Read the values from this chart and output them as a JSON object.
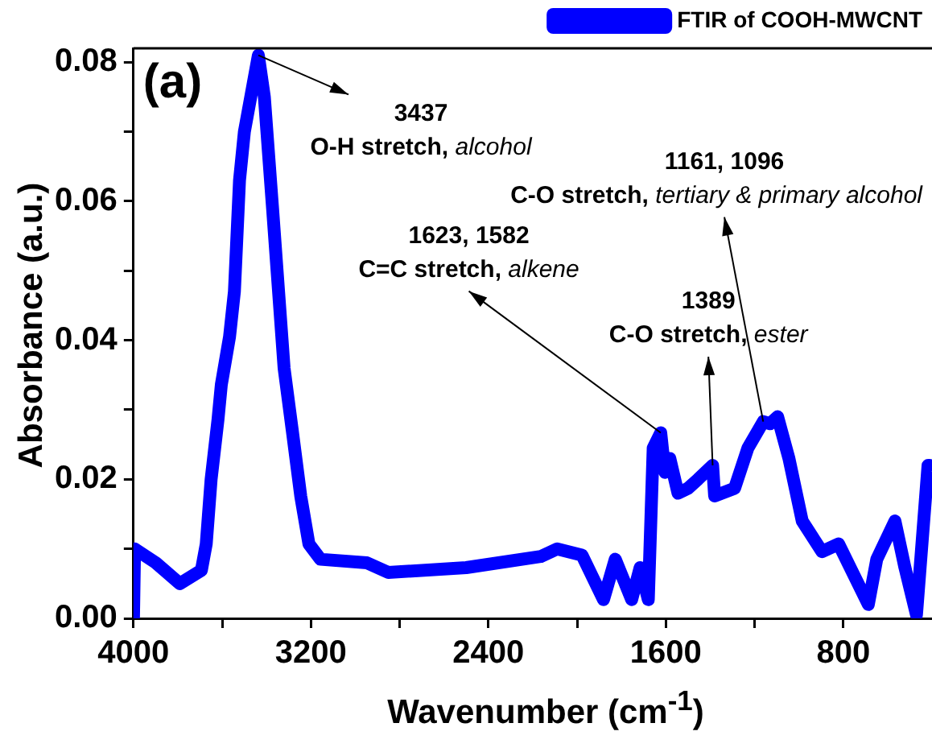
{
  "chart_data": {
    "type": "line",
    "xlabel": "Wavenumber (cm$^{-1}$)",
    "ylabel": "Absorbance (a.u.)",
    "annotations": [
      {
        "text": "3437\nO-H stretch, alcohol",
        "x": 3437,
        "y": 0.081
      },
      {
        "text": "1623, 1582\nC=C stretch, alkene",
        "x": 1623,
        "y": 0.0267
      },
      {
        "text": "1389\nC-O stretch, ester",
        "x": 1389,
        "y": 0.022
      },
      {
        "text": "1161, 1096\nC-O stretch, tertiary & primary alcohol",
        "x": 1161,
        "y": 0.0283
      },
      "(a)"
    ],
    "xlim": [
      4000,
      400
    ],
    "ylim": [
      0,
      0.082
    ],
    "xticks": [
      4000,
      {
        "value": 3600,
        "label": null
      },
      3200,
      {
        "value": 2800,
        "label": null
      },
      2400,
      {
        "value": 2000,
        "label": null
      },
      1600,
      {
        "value": 1200,
        "label": null
      },
      800
    ],
    "yticks": [
      {
        "value": 0,
        "label": "0.00"
      },
      {
        "value": 0.01,
        "label": null
      },
      {
        "value": 0.02,
        "label": "0.02"
      },
      {
        "value": 0.03,
        "label": null
      },
      {
        "value": 0.04,
        "label": "0.04"
      },
      {
        "value": 0.05,
        "label": null
      },
      {
        "value": 0.06,
        "label": "0.06"
      },
      {
        "value": 0.07,
        "label": null
      },
      {
        "value": 0.08,
        "label": "0.08"
      }
    ],
    "legend": "top right",
    "grid": false,
    "marker": "none",
    "line_style": "solid",
    "series": [
      {
        "name": "FTIR of COOH-MWCNT",
        "color": "#0000ff",
        "x": [
          4000,
          3995,
          3900,
          3791,
          3694,
          3672,
          3650,
          3619,
          3604,
          3567,
          3545,
          3522,
          3500,
          3437,
          3410,
          3373,
          3321,
          3284,
          3246,
          3209,
          3157,
          2948,
          2851,
          2500,
          2164,
          2090,
          1978,
          1881,
          1828,
          1754,
          1716,
          1679,
          1657,
          1623,
          1604,
          1582,
          1545,
          1500,
          1455,
          1389,
          1380,
          1290,
          1230,
          1161,
          1130,
          1096,
          1045,
          985,
          896,
          821,
          687,
          649,
          567,
          522,
          470,
          418,
          410
        ],
        "values": [
          0,
          0.01,
          0.008,
          0.005,
          0.0069,
          0.0107,
          0.02,
          0.0286,
          0.0336,
          0.0405,
          0.047,
          0.063,
          0.07,
          0.081,
          0.075,
          0.059,
          0.036,
          0.027,
          0.0176,
          0.0107,
          0.0085,
          0.008,
          0.0066,
          0.0073,
          0.0089,
          0.01,
          0.0091,
          0.0027,
          0.0085,
          0.0027,
          0.0073,
          0.0027,
          0.0245,
          0.0267,
          0.021,
          0.023,
          0.018,
          0.0187,
          0.02,
          0.022,
          0.0176,
          0.0187,
          0.0245,
          0.0283,
          0.028,
          0.029,
          0.023,
          0.014,
          0.0096,
          0.0107,
          0.002,
          0.0085,
          0.014,
          0.0073,
          0.0005,
          0.022,
          0.022
        ]
      }
    ]
  }
}
